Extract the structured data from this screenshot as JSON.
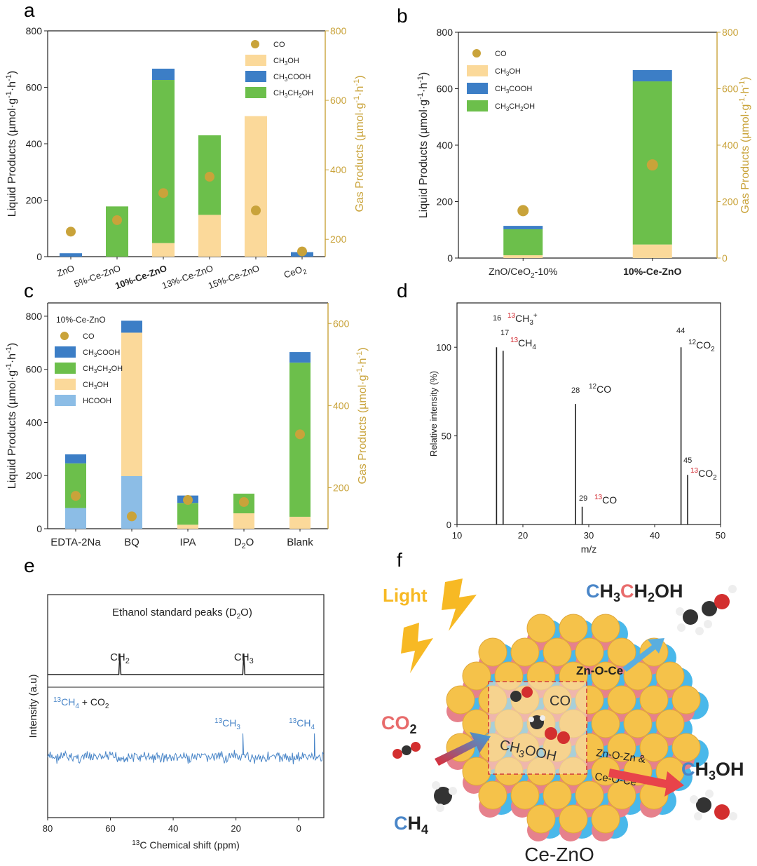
{
  "panels": {
    "a": {
      "letter": "a",
      "chart_data": {
        "type": "bar",
        "stacked": true,
        "categories": [
          "ZnO",
          "5%-Ce-ZnO",
          "10%-Ce-ZnO",
          "13%-Ce-ZnO",
          "15%-Ce-ZnO",
          "CeO2"
        ],
        "category_labels": [
          {
            "parts": [
              "ZnO"
            ],
            "bold": false
          },
          {
            "parts": [
              "5%-Ce-ZnO"
            ],
            "bold": false
          },
          {
            "parts": [
              "10%-Ce-ZnO"
            ],
            "bold": true
          },
          {
            "parts": [
              "13%-Ce-ZnO"
            ],
            "bold": false
          },
          {
            "parts": [
              "15%-Ce-ZnO"
            ],
            "bold": false
          },
          {
            "parts": [
              "CeO",
              "2"
            ],
            "bold": false
          }
        ],
        "series": [
          {
            "name": "CH3OH",
            "color": "#fbd99a",
            "values": [
              0,
              0,
              48,
              148,
              498,
              0
            ]
          },
          {
            "name": "CH3CH2OH",
            "color": "#6cbf4b",
            "values": [
              0,
              178,
              578,
              282,
              0,
              0
            ]
          },
          {
            "name": "CH3COOH",
            "color": "#3c7ec6",
            "values": [
              12,
              0,
              40,
              0,
              0,
              16
            ]
          }
        ],
        "co": {
          "name": "CO",
          "color": "#c9a33a",
          "values": [
            222,
            255,
            333,
            380,
            283,
            165
          ]
        },
        "ylabel": "Liquid Products (µmol·g⁻¹·h⁻¹)",
        "y2label": "Gas Products (µmol·g⁻¹·h⁻¹)",
        "ylim": [
          0,
          800
        ],
        "yticks": [
          0,
          200,
          400,
          600,
          800
        ],
        "y2lim": [
          150,
          800
        ],
        "y2ticks": [
          200,
          400,
          600,
          800
        ],
        "legend_position": "top-right"
      }
    },
    "b": {
      "letter": "b",
      "chart_data": {
        "type": "bar",
        "stacked": true,
        "categories": [
          "ZnO/CeO2-10%",
          "10%-Ce-ZnO"
        ],
        "category_labels": [
          {
            "parts": [
              "ZnO/CeO",
              "2",
              "-10%"
            ],
            "bold": false
          },
          {
            "parts": [
              "10%-Ce-ZnO"
            ],
            "bold": true
          }
        ],
        "series": [
          {
            "name": "CH3OH",
            "color": "#fbd99a",
            "values": [
              10,
              48
            ]
          },
          {
            "name": "CH3CH2OH",
            "color": "#6cbf4b",
            "values": [
              92,
              578
            ]
          },
          {
            "name": "CH3COOH",
            "color": "#3c7ec6",
            "values": [
              12,
              40
            ]
          }
        ],
        "co": {
          "name": "CO",
          "color": "#c9a33a",
          "values": [
            168,
            330
          ]
        },
        "ylabel": "Liquid Products (µmol·g⁻¹·h⁻¹)",
        "y2label": "Gas Products (µmol·g⁻¹·h⁻¹)",
        "ylim": [
          0,
          800
        ],
        "yticks": [
          0,
          200,
          400,
          600,
          800
        ],
        "y2lim": [
          0,
          800
        ],
        "y2ticks": [
          0,
          200,
          400,
          600,
          800
        ],
        "legend_position": "top-left"
      }
    },
    "c": {
      "letter": "c",
      "chart_data": {
        "type": "bar",
        "stacked": true,
        "legend_title": "10%-Ce-ZnO",
        "categories": [
          "EDTA-2Na",
          "BQ",
          "IPA",
          "D2O",
          "Blank"
        ],
        "category_labels": [
          {
            "parts": [
              "EDTA-2Na"
            ],
            "bold": false
          },
          {
            "parts": [
              "BQ"
            ],
            "bold": false
          },
          {
            "parts": [
              "IPA"
            ],
            "bold": false
          },
          {
            "parts": [
              "D",
              "2",
              "O"
            ],
            "bold": false
          },
          {
            "parts": [
              "Blank"
            ],
            "bold": false
          }
        ],
        "series": [
          {
            "name": "HCOOH",
            "color": "#8cbde6",
            "values": [
              78,
              198,
              0,
              0,
              0
            ]
          },
          {
            "name": "CH3OH",
            "color": "#fbd99a",
            "values": [
              0,
              540,
              15,
              58,
              45
            ]
          },
          {
            "name": "CH3CH2OH",
            "color": "#6cbf4b",
            "values": [
              168,
              0,
              82,
              74,
              580
            ]
          },
          {
            "name": "CH3COOH",
            "color": "#3c7ec6",
            "values": [
              34,
              45,
              28,
              0,
              40
            ]
          }
        ],
        "co": {
          "name": "CO",
          "color": "#c9a33a",
          "values": [
            180,
            130,
            170,
            165,
            330
          ]
        },
        "ylabel": "Liquid Products (µmol·g⁻¹·h⁻¹)",
        "y2label": "Gas Products (µmol·g⁻¹·h⁻¹)",
        "ylim": [
          0,
          850
        ],
        "yticks": [
          0,
          200,
          400,
          600,
          800
        ],
        "y2lim": [
          100,
          650
        ],
        "y2ticks": [
          200,
          400,
          600
        ],
        "legend_position": "top-left"
      }
    },
    "d": {
      "letter": "d",
      "chart_data": {
        "type": "bar",
        "xlabel": "m/z",
        "ylabel": "Relative intensity (%)",
        "xlim": [
          10,
          50
        ],
        "ylim": [
          0,
          125
        ],
        "xticks": [
          10,
          20,
          30,
          40,
          50
        ],
        "yticks": [
          0,
          50,
          100
        ],
        "x": [
          16,
          17,
          28,
          29,
          44,
          45
        ],
        "values": [
          100,
          98,
          68,
          10,
          100,
          28
        ],
        "peak_labels": [
          {
            "mz": "16",
            "iso": "13",
            "species": "CH",
            "sub": "3",
            "sup": "+"
          },
          {
            "mz": "17",
            "iso": "13",
            "species": "CH",
            "sub": "4",
            "sup": ""
          },
          {
            "mz": "28",
            "iso": "12",
            "species": "CO",
            "sub": "",
            "sup": ""
          },
          {
            "mz": "29",
            "iso": "13",
            "species": "CO",
            "sub": "",
            "sup": ""
          },
          {
            "mz": "44",
            "iso": "12",
            "species": "CO",
            "sub": "2",
            "sup": ""
          },
          {
            "mz": "45",
            "iso": "13",
            "species": "CO",
            "sub": "2",
            "sup": ""
          }
        ]
      }
    },
    "e": {
      "letter": "e",
      "chart_data": {
        "type": "line",
        "xlabel": "13C Chemical shift (ppm)",
        "xlabel_parts": [
          "13",
          "C Chemical shift (ppm)"
        ],
        "ylabel": "Intensity (a.u)",
        "xlim": [
          80,
          -8
        ],
        "xticks": [
          80,
          60,
          40,
          20,
          0
        ],
        "top_trace": {
          "title": "Ethanol standard peaks (D2O)",
          "title_parts": [
            "Ethanol standard peaks (D",
            "2",
            "O)"
          ],
          "peaks": [
            {
              "x": 57,
              "label": "CH",
              "sub": "2"
            },
            {
              "x": 17.5,
              "label": "CH",
              "sub": "3"
            }
          ]
        },
        "bottom_trace": {
          "label": "13CH4 + CO2",
          "peaks": [
            {
              "x": 17.8,
              "iso": "13",
              "label": "CH",
              "sub": "3"
            },
            {
              "x": -5,
              "iso": "13",
              "label": "CH",
              "sub": "4"
            }
          ]
        }
      }
    },
    "f": {
      "letter": "f",
      "light": "Light",
      "bottom_label": "Ce-ZnO",
      "ethanol": {
        "l1": "C",
        "l2": "H",
        "s1": "3",
        "l3": "C",
        "l4": "H",
        "s2": "2",
        "l5": "OH"
      },
      "methanol": {
        "l1": "C",
        "l2": "H",
        "s1": "3",
        "l3": "OH"
      },
      "co2": {
        "main": "CO",
        "sub": "2"
      },
      "ch4": {
        "main": "C",
        "rest": "H",
        "sub": "4"
      },
      "site1": "Zn-O-Ce",
      "site2a": "Zn-O-Zn &",
      "site2b": "Ce-O-Ce",
      "co_label": "CO",
      "ch3ooh": "CH",
      "ch3ooh_sub": "3",
      "ch3ooh_rest": "OOH"
    }
  },
  "legend": {
    "co": "CO",
    "ch3oh": "CH",
    "ch3cooh": "CH",
    "ch3ch2oh": "CH",
    "hcooh": "HCOOH"
  },
  "colors": {
    "CH3OH": "#fbd99a",
    "CH3CH2OH": "#6cbf4b",
    "CH3COOH": "#3c7ec6",
    "HCOOH": "#8cbde6",
    "CO": "#c9a33a",
    "axis2": "#c9a33a",
    "iso_red": "#d2232a",
    "trace_blue": "#4a86c8"
  }
}
